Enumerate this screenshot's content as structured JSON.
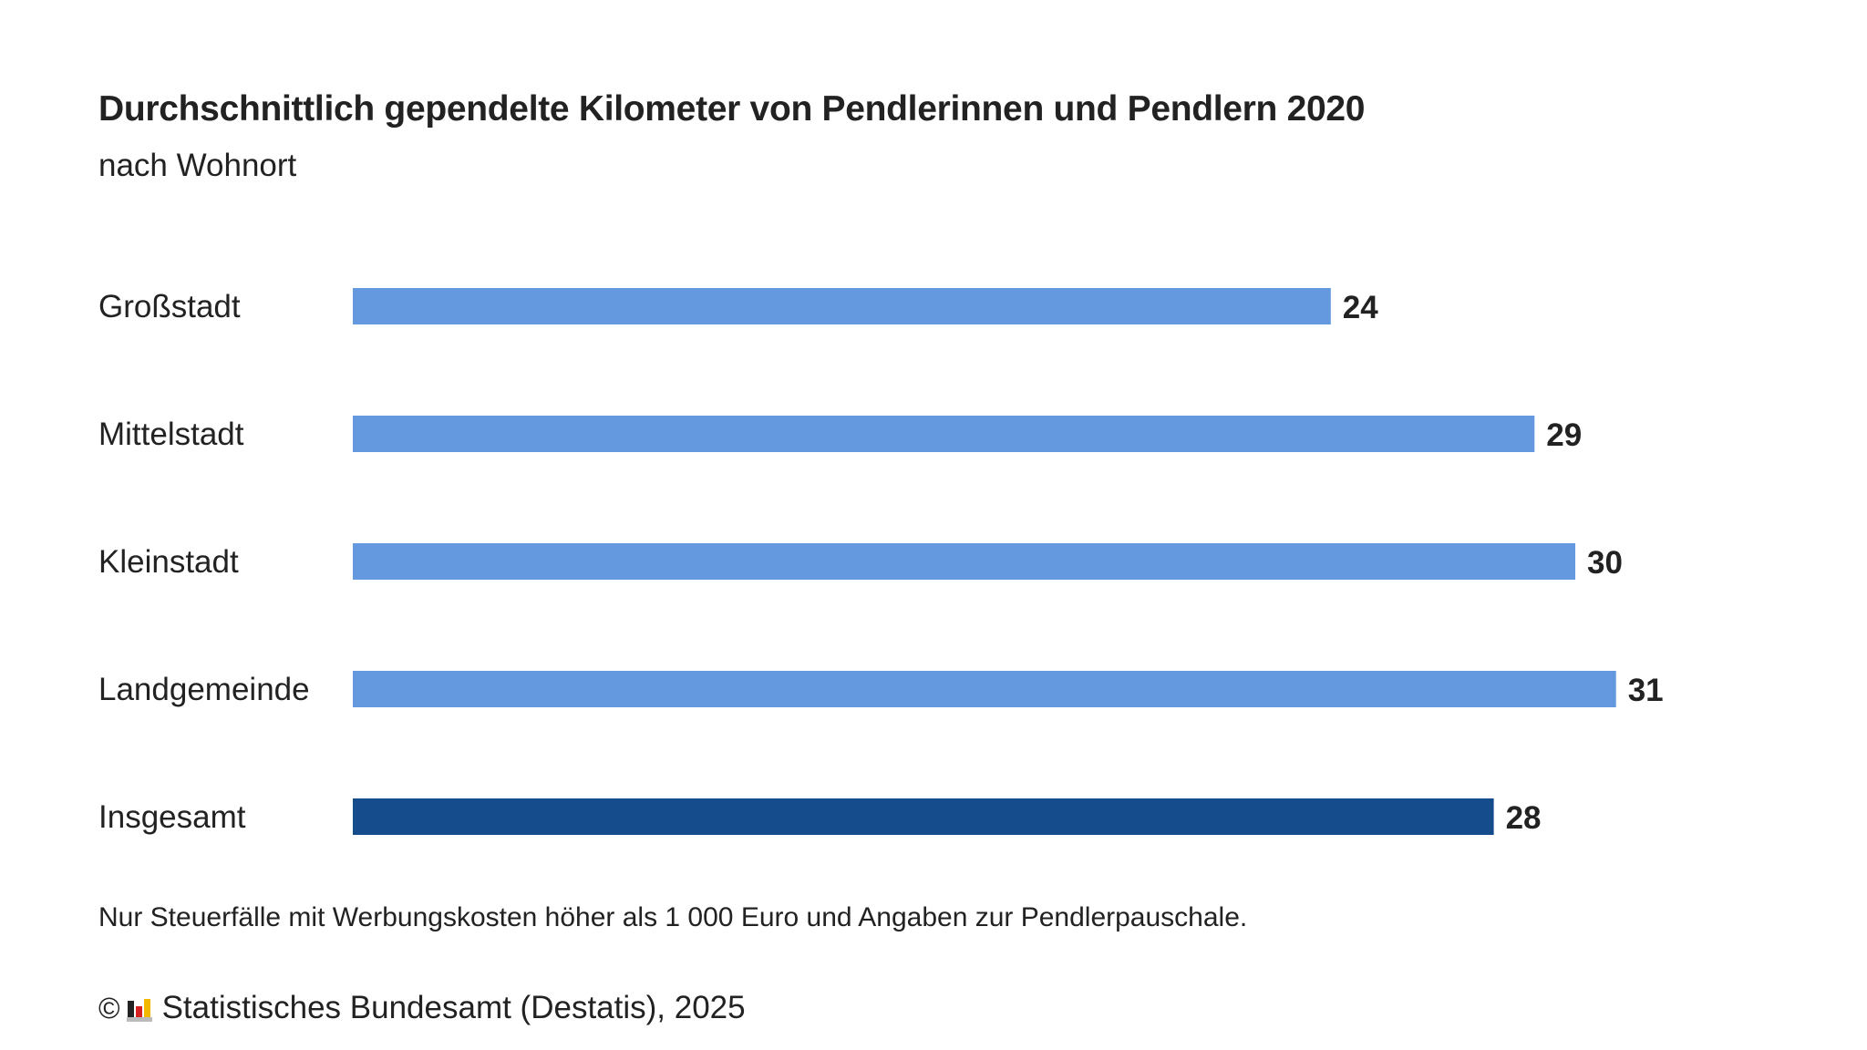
{
  "chart_data": {
    "type": "bar",
    "orientation": "horizontal",
    "title": "Durchschnittlich gependelte Kilometer von Pendlerinnen und Pendlern 2020",
    "subtitle": "nach Wohnort",
    "categories": [
      "Großstadt",
      "Mittelstadt",
      "Kleinstadt",
      "Landgemeinde",
      "Insgesamt"
    ],
    "values": [
      24,
      29,
      30,
      31,
      28
    ],
    "value_labels": [
      "24",
      "29",
      "30",
      "31",
      "28"
    ],
    "bar_colors": [
      "#6499e0",
      "#6499e0",
      "#6499e0",
      "#6499e0",
      "#154d8c"
    ],
    "xlim": [
      0,
      40
    ],
    "grid": false,
    "footnote": "Nur Steuerfälle mit Werbungskosten höher als 1 000 Euro und Angaben zur Pendlerpauschale."
  },
  "source": {
    "copyright_symbol": "©",
    "text": "Statistisches Bundesamt (Destatis), 2025",
    "logo_icon": "destatis-logo-icon",
    "logo_colors": [
      "#222222",
      "#d42020",
      "#f2b800",
      "#bbbbbb"
    ]
  }
}
